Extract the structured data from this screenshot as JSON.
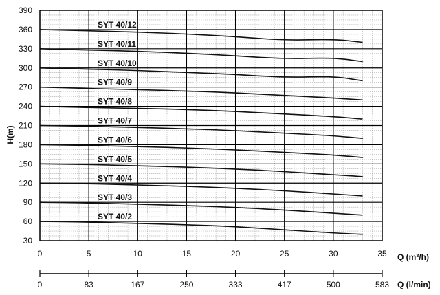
{
  "chart_data": {
    "type": "line",
    "ylabel": "H(m)",
    "xlabel": "Q (m³/h)",
    "x2label": "Q (l/min)",
    "xlim": [
      0,
      35
    ],
    "ylim": [
      30,
      390
    ],
    "yticks": [
      30,
      60,
      90,
      120,
      150,
      180,
      210,
      240,
      270,
      300,
      330,
      360,
      390
    ],
    "xticks": [
      0,
      5,
      10,
      15,
      20,
      25,
      30,
      35
    ],
    "x2ticks": [
      "0",
      "83",
      "167",
      "250",
      "333",
      "417",
      "500",
      "583"
    ],
    "x": [
      0,
      5,
      10,
      15,
      20,
      25,
      30,
      33
    ],
    "grid": true,
    "series": [
      {
        "name": "SYT 40/12",
        "values": [
          360,
          358,
          356,
          353,
          349,
          343,
          345,
          340
        ]
      },
      {
        "name": "SYT 40/11",
        "values": [
          330,
          328,
          326,
          323,
          319,
          314,
          316,
          310
        ]
      },
      {
        "name": "SYT 40/10",
        "values": [
          300,
          298,
          296,
          293,
          290,
          285,
          287,
          280
        ]
      },
      {
        "name": "SYT 40/9",
        "values": [
          270,
          268,
          266,
          264,
          261,
          257,
          253,
          250
        ]
      },
      {
        "name": "SYT 40/8",
        "values": [
          240,
          238,
          237,
          235,
          232,
          228,
          224,
          220
        ]
      },
      {
        "name": "SYT 40/7",
        "values": [
          210,
          209,
          207,
          205,
          202,
          198,
          194,
          190
        ]
      },
      {
        "name": "SYT 40/6",
        "values": [
          180,
          179,
          177,
          175,
          172,
          168,
          164,
          160
        ]
      },
      {
        "name": "SYT 40/5",
        "values": [
          150,
          149,
          147,
          145,
          142,
          138,
          133,
          130
        ]
      },
      {
        "name": "SYT 40/4",
        "values": [
          120,
          119,
          117,
          115,
          112,
          108,
          103,
          100
        ]
      },
      {
        "name": "SYT 40/3",
        "values": [
          90,
          89,
          87,
          85,
          82,
          78,
          73,
          70
        ]
      },
      {
        "name": "SYT 40/2",
        "values": [
          60,
          59,
          57,
          55,
          52,
          47,
          42,
          40
        ]
      }
    ]
  }
}
